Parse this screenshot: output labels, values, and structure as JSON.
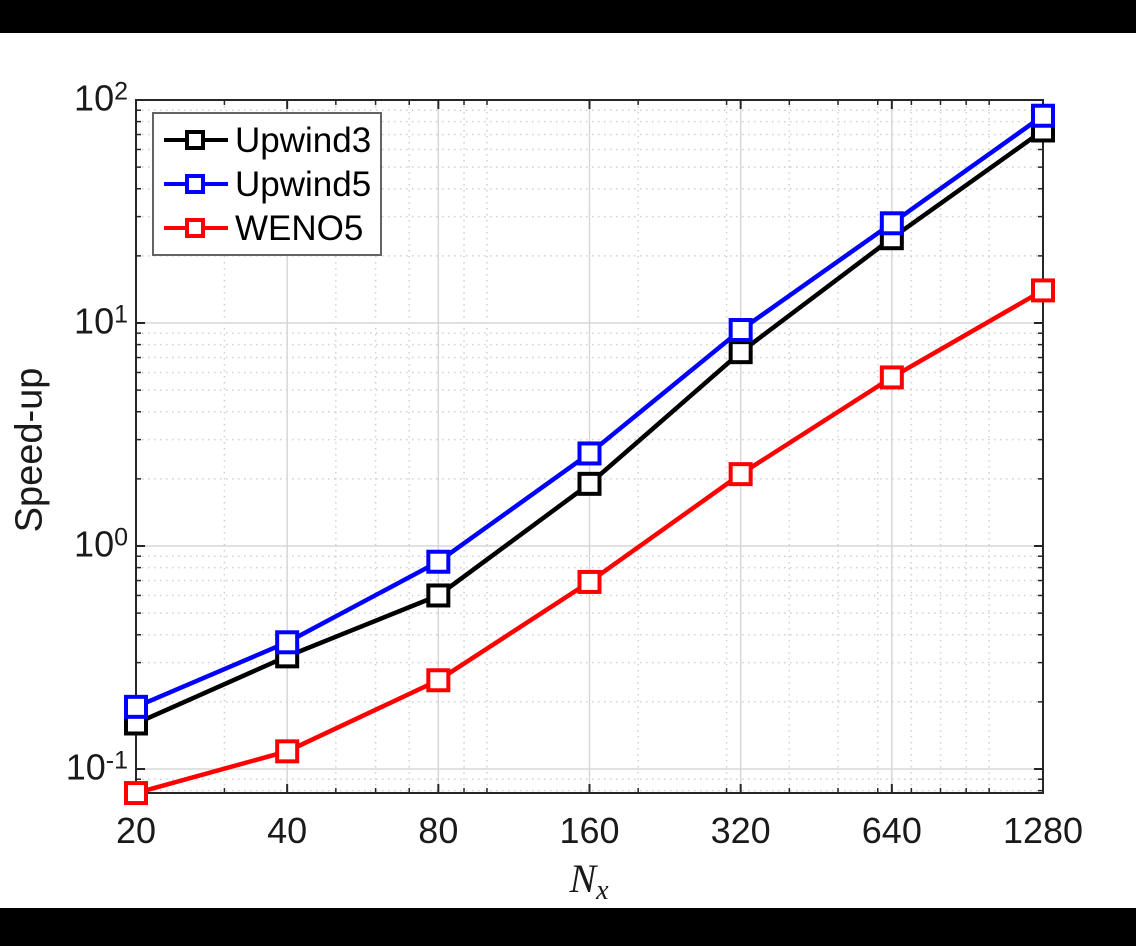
{
  "figure": {
    "background": "#ffffff",
    "letterbox_color": "#000000",
    "axis_color": "#262626",
    "grid_major_color": "#d7d7d7",
    "grid_minor_color": "#d0d0d0",
    "text_color": "#1a1a1a",
    "legend_border_color": "#636363",
    "marker_fill": "#ffffff"
  },
  "chart_data": {
    "type": "line",
    "title": "",
    "xlabel": "N_x",
    "xlabel_base": "N",
    "xlabel_sub": "x",
    "ylabel": "Speed-up",
    "x_scale": "log2",
    "y_scale": "log10",
    "xlim": [
      20,
      1280
    ],
    "ylim": [
      0.078,
      100
    ],
    "grid": "major solid + minor dotted",
    "legend_position": "top-left inside",
    "x": [
      20,
      40,
      80,
      160,
      320,
      640,
      1280
    ],
    "x_tick_labels": [
      "20",
      "40",
      "80",
      "160",
      "320",
      "640",
      "1280"
    ],
    "y_tick_base": "10",
    "y_tick_exponents": [
      2,
      1,
      0,
      -1
    ],
    "series": [
      {
        "name": "Upwind3",
        "color": "#000000",
        "marker": "square",
        "values": [
          0.16,
          0.32,
          0.6,
          1.9,
          7.4,
          24,
          73
        ]
      },
      {
        "name": "Upwind5",
        "color": "#0000ff",
        "marker": "square",
        "values": [
          0.19,
          0.37,
          0.85,
          2.6,
          9.3,
          28,
          85
        ]
      },
      {
        "name": "WENO5",
        "color": "#ff0000",
        "marker": "square",
        "values": [
          0.078,
          0.12,
          0.25,
          0.69,
          2.1,
          5.7,
          14
        ]
      }
    ]
  }
}
